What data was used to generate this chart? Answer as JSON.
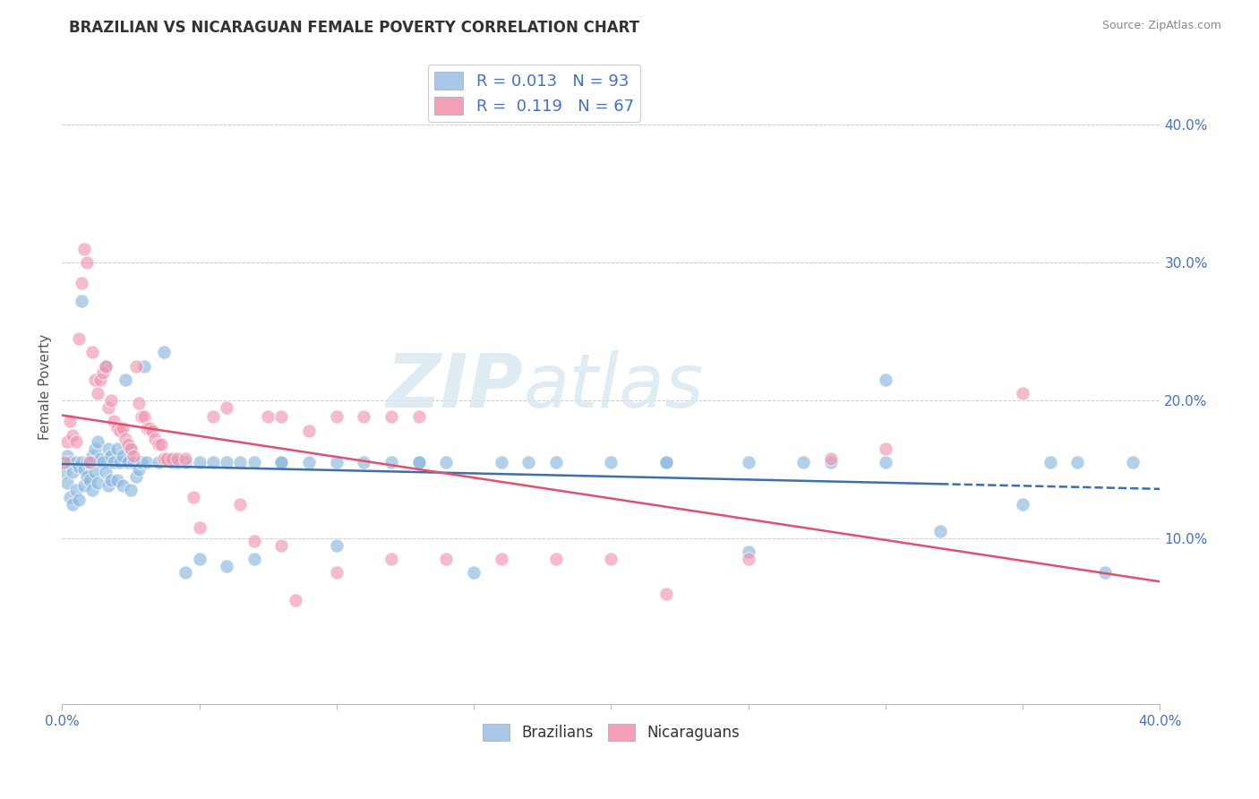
{
  "title": "BRAZILIAN VS NICARAGUAN FEMALE POVERTY CORRELATION CHART",
  "source": "Source: ZipAtlas.com",
  "ylabel": "Female Poverty",
  "xlim": [
    0.0,
    0.4
  ],
  "ylim": [
    -0.02,
    0.44
  ],
  "yticks": [
    0.1,
    0.2,
    0.3,
    0.4
  ],
  "ytick_labels": [
    "10.0%",
    "20.0%",
    "30.0%",
    "40.0%"
  ],
  "brazil_color": "#89b8e0",
  "nicaragua_color": "#f097b0",
  "brazil_line_color": "#3c6faf",
  "nicaragua_line_color": "#e05070",
  "watermark_zip": "ZIP",
  "watermark_atlas": "atlas",
  "background_color": "#ffffff",
  "grid_color": "#cccccc",
  "title_fontsize": 12,
  "axis_label_color": "#4472c4",
  "legend_label_color": "#4472c4",
  "brazil_legend_color": "#a8c8e8",
  "nicaragua_legend_color": "#f4a0b8",
  "brazil_R": "0.013",
  "brazil_N": "93",
  "nicaragua_R": "0.119",
  "nicaragua_N": "67",
  "brazil_points_x": [
    0.001,
    0.001,
    0.002,
    0.002,
    0.003,
    0.003,
    0.004,
    0.004,
    0.005,
    0.005,
    0.006,
    0.006,
    0.007,
    0.007,
    0.008,
    0.008,
    0.009,
    0.009,
    0.01,
    0.01,
    0.011,
    0.011,
    0.012,
    0.012,
    0.013,
    0.013,
    0.014,
    0.015,
    0.016,
    0.016,
    0.017,
    0.017,
    0.018,
    0.018,
    0.019,
    0.02,
    0.02,
    0.021,
    0.022,
    0.022,
    0.023,
    0.024,
    0.025,
    0.025,
    0.026,
    0.027,
    0.028,
    0.029,
    0.03,
    0.031,
    0.035,
    0.037,
    0.04,
    0.042,
    0.045,
    0.05,
    0.055,
    0.06,
    0.065,
    0.07,
    0.08,
    0.09,
    0.1,
    0.11,
    0.13,
    0.15,
    0.17,
    0.2,
    0.22,
    0.25,
    0.28,
    0.3,
    0.32,
    0.35,
    0.36,
    0.37,
    0.38,
    0.39,
    0.3,
    0.27,
    0.25,
    0.22,
    0.18,
    0.16,
    0.14,
    0.13,
    0.12,
    0.1,
    0.08,
    0.07,
    0.06,
    0.05,
    0.045
  ],
  "brazil_points_y": [
    0.155,
    0.148,
    0.16,
    0.14,
    0.155,
    0.13,
    0.148,
    0.125,
    0.155,
    0.135,
    0.152,
    0.128,
    0.155,
    0.272,
    0.15,
    0.138,
    0.155,
    0.145,
    0.155,
    0.142,
    0.16,
    0.135,
    0.165,
    0.148,
    0.17,
    0.14,
    0.158,
    0.155,
    0.225,
    0.148,
    0.165,
    0.138,
    0.16,
    0.142,
    0.155,
    0.165,
    0.142,
    0.155,
    0.16,
    0.138,
    0.215,
    0.155,
    0.165,
    0.135,
    0.155,
    0.145,
    0.15,
    0.155,
    0.225,
    0.155,
    0.155,
    0.235,
    0.155,
    0.155,
    0.155,
    0.155,
    0.155,
    0.155,
    0.155,
    0.155,
    0.155,
    0.155,
    0.155,
    0.155,
    0.155,
    0.075,
    0.155,
    0.155,
    0.155,
    0.155,
    0.155,
    0.215,
    0.105,
    0.125,
    0.155,
    0.155,
    0.075,
    0.155,
    0.155,
    0.155,
    0.09,
    0.155,
    0.155,
    0.155,
    0.155,
    0.155,
    0.155,
    0.095,
    0.155,
    0.085,
    0.08,
    0.085,
    0.075
  ],
  "nicaragua_points_x": [
    0.001,
    0.002,
    0.003,
    0.004,
    0.005,
    0.006,
    0.007,
    0.008,
    0.009,
    0.01,
    0.011,
    0.012,
    0.013,
    0.014,
    0.015,
    0.016,
    0.017,
    0.018,
    0.019,
    0.02,
    0.021,
    0.022,
    0.023,
    0.024,
    0.025,
    0.026,
    0.027,
    0.028,
    0.029,
    0.03,
    0.031,
    0.032,
    0.033,
    0.034,
    0.035,
    0.036,
    0.037,
    0.038,
    0.04,
    0.042,
    0.045,
    0.048,
    0.05,
    0.055,
    0.06,
    0.065,
    0.07,
    0.075,
    0.08,
    0.085,
    0.09,
    0.1,
    0.11,
    0.12,
    0.13,
    0.35,
    0.3,
    0.28,
    0.25,
    0.22,
    0.2,
    0.18,
    0.16,
    0.14,
    0.12,
    0.1,
    0.08
  ],
  "nicaragua_points_y": [
    0.155,
    0.17,
    0.185,
    0.175,
    0.17,
    0.245,
    0.285,
    0.31,
    0.3,
    0.155,
    0.235,
    0.215,
    0.205,
    0.215,
    0.22,
    0.225,
    0.195,
    0.2,
    0.185,
    0.18,
    0.178,
    0.18,
    0.172,
    0.168,
    0.165,
    0.16,
    0.225,
    0.198,
    0.188,
    0.188,
    0.18,
    0.18,
    0.178,
    0.172,
    0.168,
    0.168,
    0.158,
    0.158,
    0.158,
    0.158,
    0.158,
    0.13,
    0.108,
    0.188,
    0.195,
    0.125,
    0.098,
    0.188,
    0.188,
    0.055,
    0.178,
    0.188,
    0.188,
    0.188,
    0.188,
    0.205,
    0.165,
    0.158,
    0.085,
    0.06,
    0.085,
    0.085,
    0.085,
    0.085,
    0.085,
    0.075,
    0.095
  ]
}
